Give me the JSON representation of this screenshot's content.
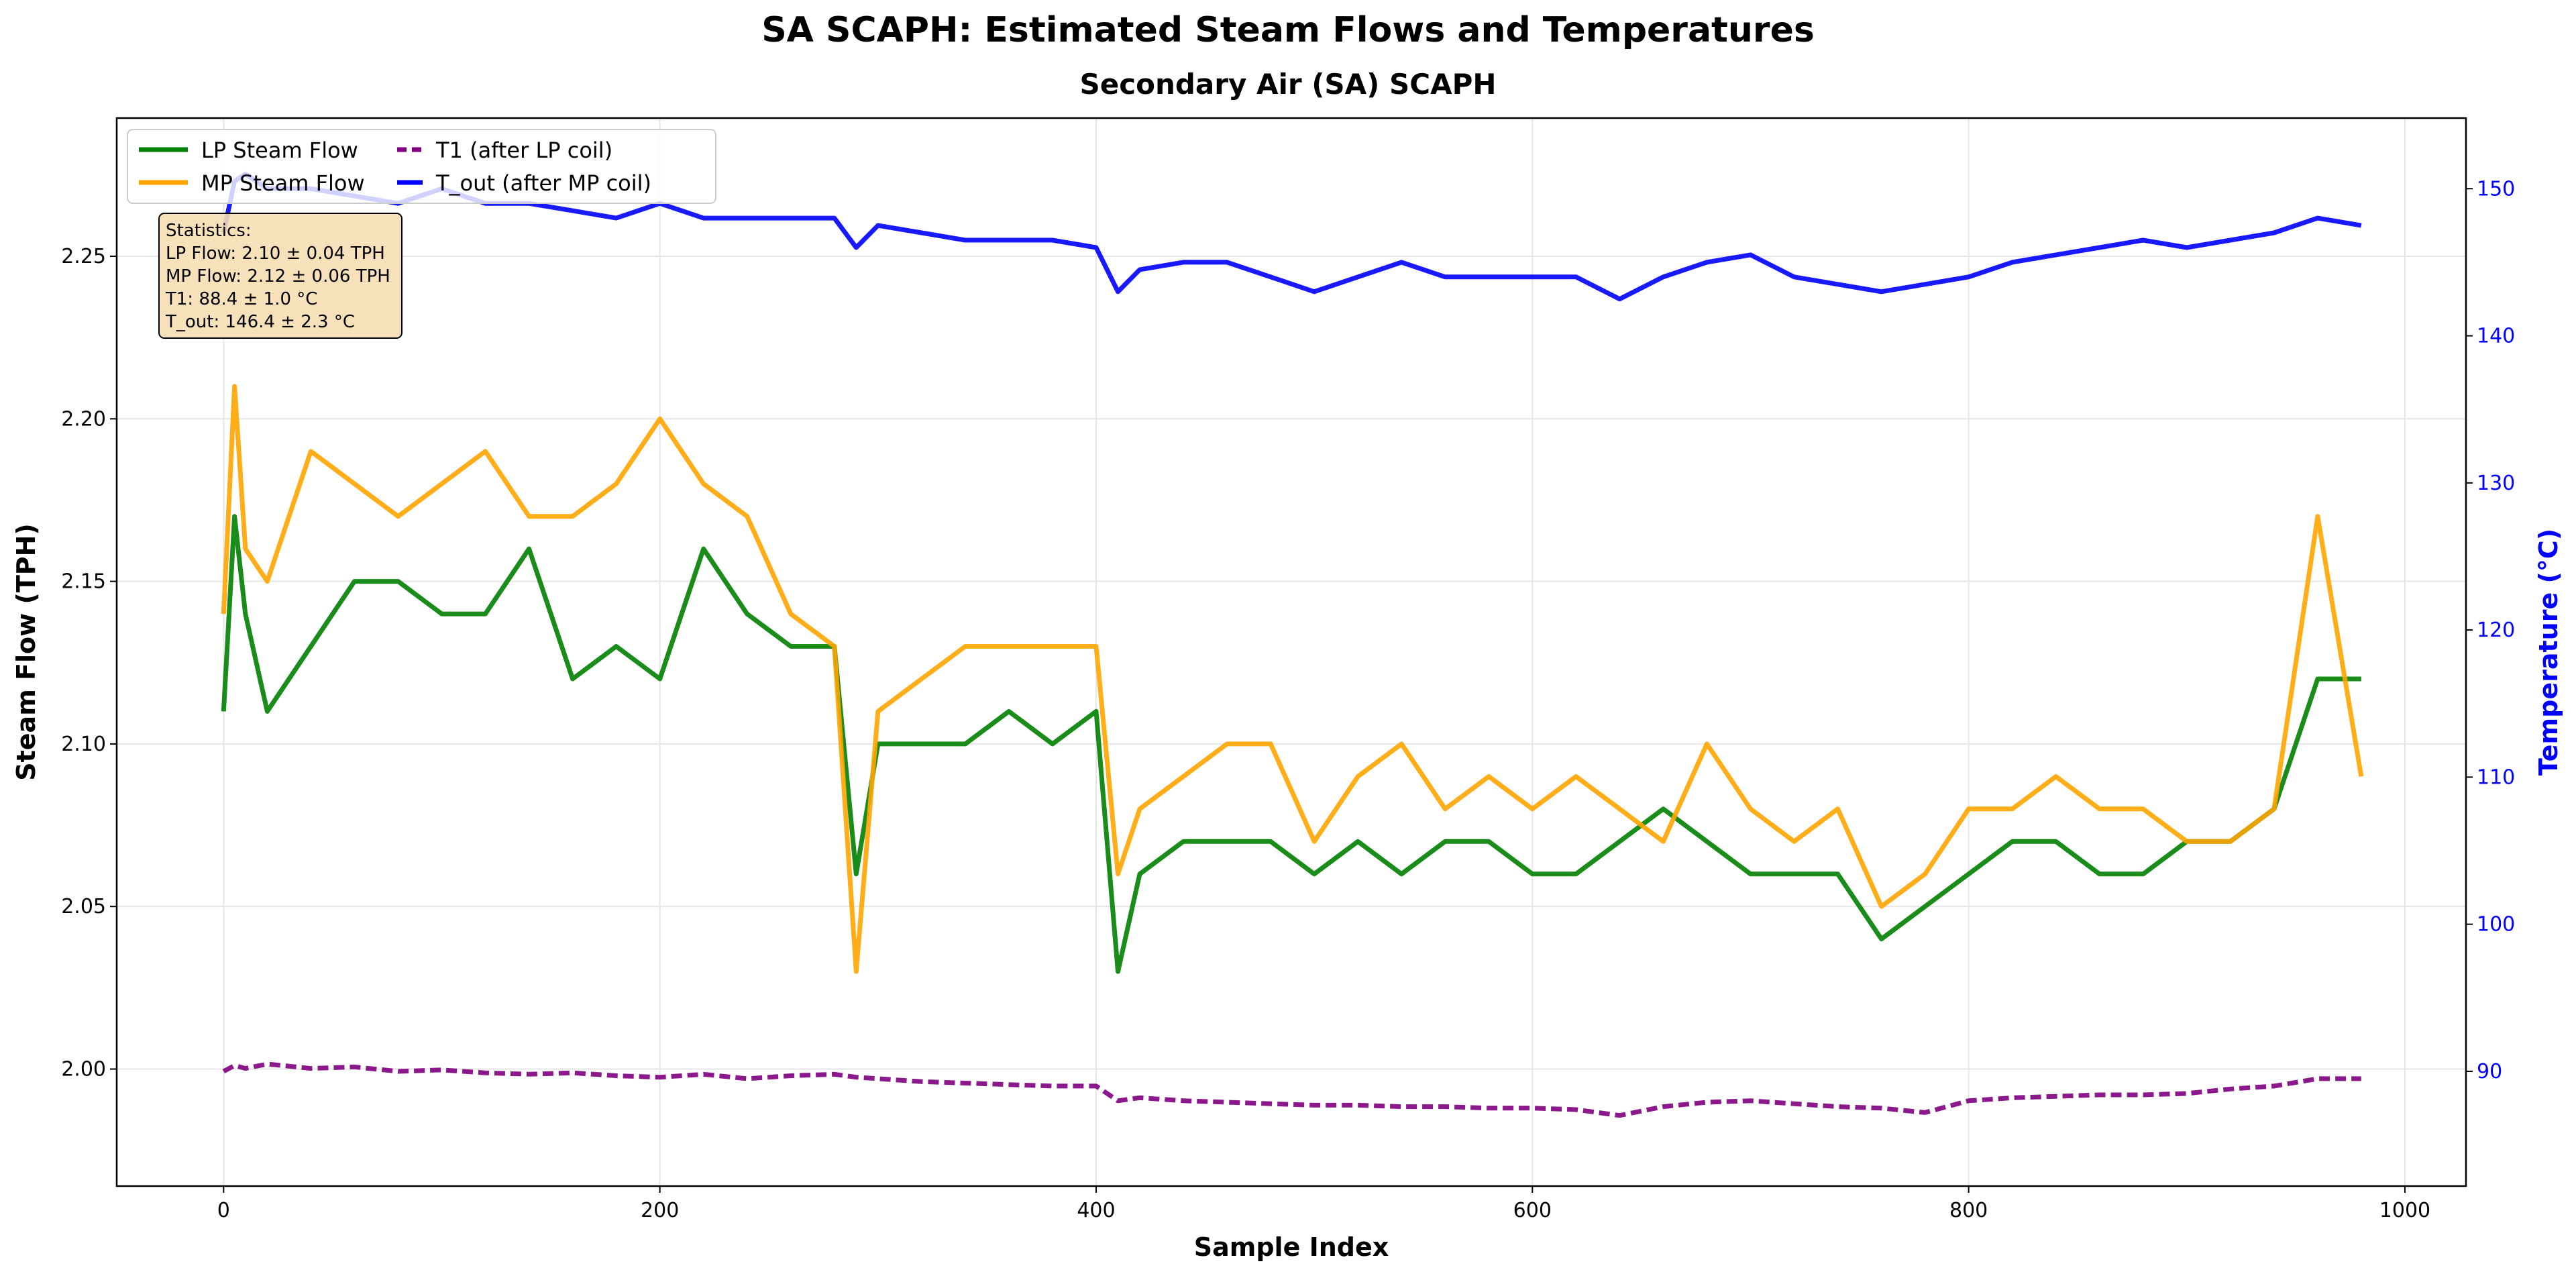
{
  "chart_data": {
    "type": "line",
    "title": "SA SCAPH: Estimated Steam Flows and Temperatures",
    "subtitle": "Secondary Air (SA) SCAPH",
    "xlabel": "Sample Index",
    "ylabel": "Steam Flow (TPH)",
    "y2label": "Temperature (°C)",
    "xlim": [
      -49,
      1028
    ],
    "ylim": [
      1.964,
      2.2925
    ],
    "y2lim": [
      82.2,
      154.8
    ],
    "xticks": [
      0,
      200,
      400,
      600,
      800,
      1000
    ],
    "yticks": [
      2.0,
      2.05,
      2.1,
      2.15,
      2.2,
      2.25
    ],
    "ytick_labels": [
      "2.00",
      "2.05",
      "2.10",
      "2.15",
      "2.20",
      "2.25"
    ],
    "y2ticks": [
      90,
      100,
      110,
      120,
      130,
      140,
      150
    ],
    "grid": true,
    "legend_position": "top-left",
    "stats_box": {
      "title": "Statistics:",
      "lines": [
        "LP Flow: 2.10 ± 0.04 TPH",
        "MP Flow: 2.12 ± 0.06 TPH",
        "T1: 88.4 ± 1.0 °C",
        "T_out: 146.4 ± 2.3 °C"
      ]
    },
    "x": [
      0,
      5,
      10,
      20,
      40,
      60,
      80,
      100,
      120,
      140,
      160,
      180,
      200,
      220,
      240,
      260,
      280,
      290,
      300,
      320,
      340,
      360,
      380,
      400,
      410,
      420,
      440,
      460,
      480,
      500,
      520,
      540,
      560,
      580,
      600,
      620,
      640,
      660,
      680,
      700,
      720,
      740,
      760,
      780,
      800,
      820,
      840,
      860,
      880,
      900,
      920,
      940,
      960,
      980
    ],
    "series": [
      {
        "name": "LP Steam Flow",
        "axis": "left",
        "color": "#008000",
        "style": "solid",
        "values": [
          2.11,
          2.17,
          2.14,
          2.11,
          2.13,
          2.15,
          2.15,
          2.14,
          2.14,
          2.16,
          2.12,
          2.13,
          2.12,
          2.16,
          2.14,
          2.13,
          2.13,
          2.06,
          2.1,
          2.1,
          2.1,
          2.11,
          2.1,
          2.11,
          2.03,
          2.06,
          2.07,
          2.07,
          2.07,
          2.06,
          2.07,
          2.06,
          2.07,
          2.07,
          2.06,
          2.06,
          2.07,
          2.08,
          2.07,
          2.06,
          2.06,
          2.06,
          2.04,
          2.05,
          2.06,
          2.07,
          2.07,
          2.06,
          2.06,
          2.07,
          2.07,
          2.08,
          2.12,
          2.12
        ]
      },
      {
        "name": "MP Steam Flow",
        "axis": "left",
        "color": "#ffa500",
        "style": "solid",
        "values": [
          2.14,
          2.21,
          2.16,
          2.15,
          2.19,
          2.18,
          2.17,
          2.18,
          2.19,
          2.17,
          2.17,
          2.18,
          2.2,
          2.18,
          2.17,
          2.14,
          2.13,
          2.03,
          2.11,
          2.12,
          2.13,
          2.13,
          2.13,
          2.13,
          2.06,
          2.08,
          2.09,
          2.1,
          2.1,
          2.07,
          2.09,
          2.1,
          2.08,
          2.09,
          2.08,
          2.09,
          2.08,
          2.07,
          2.1,
          2.08,
          2.07,
          2.08,
          2.05,
          2.06,
          2.08,
          2.08,
          2.09,
          2.08,
          2.08,
          2.07,
          2.07,
          2.08,
          2.17,
          2.09
        ]
      },
      {
        "name": "T1 (after LP coil)",
        "axis": "right",
        "color": "#800080",
        "style": "dashed",
        "values": [
          90.0,
          90.4,
          90.2,
          90.5,
          90.2,
          90.3,
          90.0,
          90.1,
          89.9,
          89.8,
          89.9,
          89.7,
          89.6,
          89.8,
          89.5,
          89.7,
          89.8,
          89.6,
          89.5,
          89.3,
          89.2,
          89.1,
          89.0,
          89.0,
          88.0,
          88.2,
          88.0,
          87.9,
          87.8,
          87.7,
          87.7,
          87.6,
          87.6,
          87.5,
          87.5,
          87.4,
          87.0,
          87.6,
          87.9,
          88.0,
          87.8,
          87.6,
          87.5,
          87.2,
          88.0,
          88.2,
          88.3,
          88.4,
          88.4,
          88.5,
          88.8,
          89.0,
          89.5,
          89.5
        ]
      },
      {
        "name": "T_out (after MP coil)",
        "axis": "right",
        "color": "#0000ff",
        "style": "solid",
        "values": [
          147.0,
          150.5,
          151.0,
          150.0,
          150.0,
          149.5,
          149.0,
          150.0,
          149.0,
          149.0,
          148.5,
          148.0,
          149.0,
          148.0,
          148.0,
          148.0,
          148.0,
          146.0,
          147.5,
          147.0,
          146.5,
          146.5,
          146.5,
          146.0,
          143.0,
          144.5,
          145.0,
          145.0,
          144.0,
          143.0,
          144.0,
          145.0,
          144.0,
          144.0,
          144.0,
          144.0,
          142.5,
          144.0,
          145.0,
          145.5,
          144.0,
          143.5,
          143.0,
          143.5,
          144.0,
          145.0,
          145.5,
          146.0,
          146.5,
          146.0,
          146.5,
          147.0,
          148.0,
          147.5
        ]
      }
    ]
  }
}
